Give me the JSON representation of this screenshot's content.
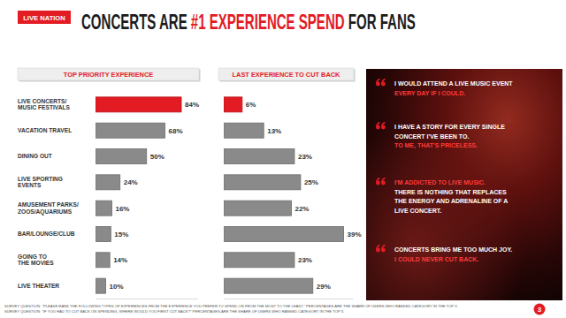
{
  "header": {
    "logo": "LIVE NATION",
    "title": [
      {
        "text": "CONCERTS ARE ",
        "highlight": false
      },
      {
        "text": "#1 EXPERIENCE SPEND",
        "highlight": true
      },
      {
        "text": " FOR FANS",
        "highlight": false
      }
    ]
  },
  "chart_data": [
    {
      "type": "bar",
      "orientation": "horizontal",
      "title": "TOP PRIORITY EXPERIENCE",
      "categories": [
        "LIVE CONCERTS/\nMUSIC FESTIVALS",
        "VACATION TRAVEL",
        "DINING OUT",
        "LIVE SPORTING\nEVENTS",
        "AMUSEMENT PARKS/\nZOOS/AQUARIUMS",
        "BAR/LOUNGE/CLUB",
        "GOING TO\nTHE MOVIES",
        "LIVE THEATER"
      ],
      "values": [
        84,
        68,
        50,
        24,
        16,
        15,
        14,
        10
      ],
      "value_labels": [
        "84%",
        "68%",
        "50%",
        "24%",
        "16%",
        "15%",
        "14%",
        "10%"
      ],
      "colors": [
        "#e31b23",
        "#8a8a8a",
        "#8a8a8a",
        "#8a8a8a",
        "#8a8a8a",
        "#8a8a8a",
        "#8a8a8a",
        "#8a8a8a"
      ],
      "xlim": [
        0,
        100
      ],
      "data_labels": true,
      "tick_labels": "y",
      "grid": false
    },
    {
      "type": "bar",
      "orientation": "horizontal",
      "title": "LAST EXPERIENCE TO CUT BACK",
      "categories": [
        null,
        null,
        null,
        null,
        null,
        null,
        null,
        null
      ],
      "values": [
        6,
        13,
        23,
        25,
        22,
        39,
        23,
        29
      ],
      "value_labels": [
        "6%",
        "13%",
        "23%",
        "25%",
        "22%",
        "39%",
        "23%",
        "29%"
      ],
      "colors": [
        "#e31b23",
        "#8a8a8a",
        "#8a8a8a",
        "#8a8a8a",
        "#8a8a8a",
        "#8a8a8a",
        "#8a8a8a",
        "#8a8a8a"
      ],
      "xlim": [
        0,
        42
      ],
      "data_labels": true,
      "tick_labels": false,
      "grid": false
    }
  ],
  "quotes": [
    {
      "lines": [
        {
          "text": "I WOULD ATTEND A LIVE MUSIC EVENT",
          "highlight": false
        },
        {
          "text": "EVERY DAY IF I COULD.",
          "highlight": true
        }
      ]
    },
    {
      "lines": [
        {
          "text": "I HAVE A STORY FOR EVERY SINGLE",
          "highlight": false
        },
        {
          "text": "CONCERT I'VE BEEN TO.",
          "highlight": false
        },
        {
          "text": "TO ME, THAT'S PRICELESS.",
          "highlight": true
        }
      ]
    },
    {
      "lines": [
        {
          "text": "I'M ADDICTED TO LIVE MUSIC.",
          "highlight": true
        },
        {
          "text": "THERE IS NOTHING THAT REPLACES",
          "highlight": false
        },
        {
          "text": "THE ENERGY AND ADRENALINE OF A",
          "highlight": false
        },
        {
          "text": "LIVE CONCERT.",
          "highlight": false
        }
      ]
    },
    {
      "lines": [
        {
          "text": "CONCERTS BRING ME TOO MUCH JOY.",
          "highlight": false
        },
        {
          "text": "I COULD NEVER CUT BACK.",
          "highlight": true
        }
      ]
    }
  ],
  "footnotes": [
    "SURVEY QUESTION: \"PLEASE RANK THE FOLLOWING TYPES OF EXPERIENCES FROM THE EXPERIENCE YOU PREFER TO SPEND ON FROM THE MOST TO THE LEAST.\" PERCENTAGES ARE THE SHARE OF USERS WHO RANKED CATEGORY IN THE TOP 3.",
    "SURVEY QUESTION: \"IF YOU HAD TO CUT BACK ON SPENDING, WHERE WOULD YOU FIRST CUT BACK?\" PERCENTAGES ARE THE SHARE OF USERS WHO RANKED CATEGORY IN THE TOP 3."
  ],
  "page_number": 3
}
